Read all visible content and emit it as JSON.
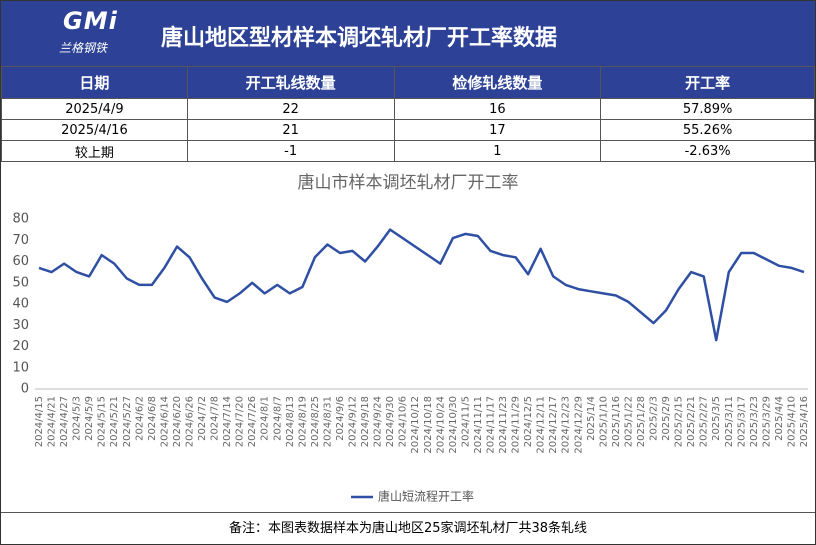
{
  "header": {
    "logo": "GMi",
    "logo_sub": "兰格钢铁",
    "title": "唐山地区型材样本调坯轧材厂开工率数据"
  },
  "table": {
    "columns": [
      "日期",
      "开工轧线数量",
      "检修轧线数量",
      "开工率"
    ],
    "rows": [
      [
        "2025/4/9",
        "22",
        "16",
        "57.89%"
      ],
      [
        "2025/4/16",
        "21",
        "17",
        "55.26%"
      ],
      [
        "较上期",
        "-1",
        "1",
        "-2.63%"
      ]
    ]
  },
  "chart_data": {
    "type": "line",
    "title": "唐山市样本调坯轧材厂开工率",
    "categories": [
      "2024/4/15",
      "2024/4/21",
      "2024/4/27",
      "2024/5/3",
      "2024/5/9",
      "2024/5/15",
      "2024/5/21",
      "2024/5/27",
      "2024/6/2",
      "2024/6/8",
      "2024/6/14",
      "2024/6/20",
      "2024/6/26",
      "2024/7/2",
      "2024/7/8",
      "2024/7/14",
      "2024/7/20",
      "2024/7/26",
      "2024/8/1",
      "2024/8/7",
      "2024/8/13",
      "2024/8/19",
      "2024/8/25",
      "2024/8/31",
      "2024/9/6",
      "2024/9/12",
      "2024/9/18",
      "2024/9/24",
      "2024/9/30",
      "2024/10/6",
      "2024/10/12",
      "2024/10/18",
      "2024/10/24",
      "2024/10/30",
      "2024/11/5",
      "2024/11/11",
      "2024/11/17",
      "2024/11/23",
      "2024/11/29",
      "2024/12/5",
      "2024/12/11",
      "2024/12/17",
      "2024/12/23",
      "2024/12/29",
      "2025/1/4",
      "2025/1/10",
      "2025/1/16",
      "2025/1/22",
      "2025/1/28",
      "2025/2/3",
      "2025/2/9",
      "2025/2/15",
      "2025/2/21",
      "2025/2/27",
      "2025/3/5",
      "2025/3/11",
      "2025/3/17",
      "2025/3/23",
      "2025/3/29",
      "2025/4/4",
      "2025/4/10",
      "2025/4/16"
    ],
    "series": [
      {
        "name": "唐山短流程开工率",
        "color": "#2e4fa3",
        "values": [
          57,
          55,
          59,
          55,
          53,
          63,
          59,
          52,
          49,
          49,
          57,
          67,
          62,
          52,
          43,
          41,
          45,
          50,
          45,
          49,
          45,
          48,
          62,
          68,
          64,
          65,
          60,
          67,
          75,
          71,
          67,
          63,
          59,
          71,
          73,
          72,
          65,
          63,
          62,
          54,
          66,
          53,
          49,
          47,
          46,
          45,
          44,
          41,
          36,
          31,
          37,
          47,
          55,
          53,
          23,
          55,
          64,
          64,
          61,
          58,
          57,
          55
        ]
      }
    ],
    "ylim": [
      0,
      80
    ],
    "yticks": [
      0,
      10,
      20,
      30,
      40,
      50,
      60,
      70,
      80
    ],
    "grid": false,
    "legend": "bottom"
  },
  "footer": "备注：本图表数据样本为唐山地区25家调坯轧材厂共38条轧线"
}
